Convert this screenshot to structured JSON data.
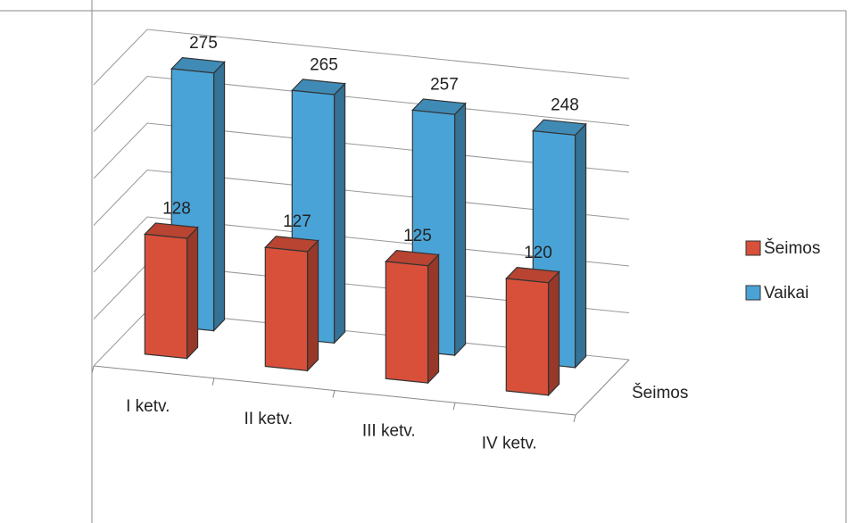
{
  "chart_data": {
    "type": "bar3d",
    "categories": [
      "I ketv.",
      "II ketv.",
      "III ketv.",
      "IV ketv."
    ],
    "series": [
      {
        "name": "Šeimos",
        "color": "#d9503a",
        "values": [
          128,
          127,
          125,
          120
        ]
      },
      {
        "name": "Vaikai",
        "color": "#4aa3d6",
        "values": [
          275,
          265,
          257,
          248
        ]
      }
    ],
    "depth_categories": [
      "Šeimos"
    ],
    "ylim": [
      0,
      300
    ],
    "yticks": [
      0,
      50,
      100,
      150,
      200,
      250,
      300
    ],
    "grid": true,
    "legend": "right"
  }
}
